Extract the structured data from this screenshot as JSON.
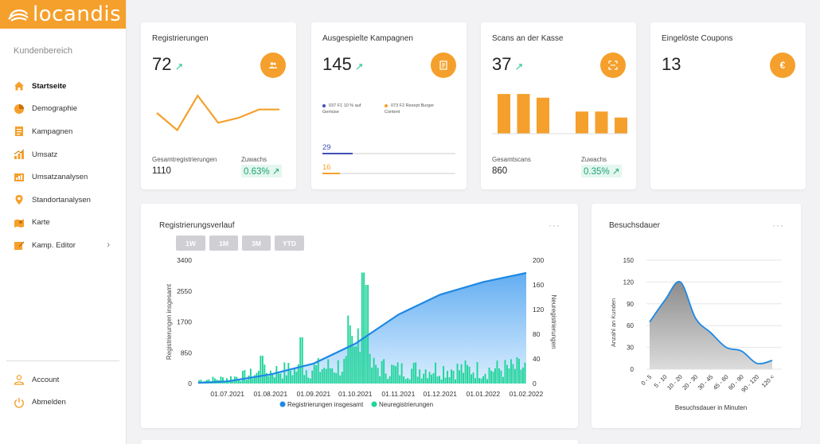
{
  "brand": {
    "name": "locandis",
    "color": "#f5a02c"
  },
  "sidebar": {
    "section_title": "Kundenbereich",
    "items": [
      {
        "label": "Startseite",
        "icon": "home-icon",
        "active": true
      },
      {
        "label": "Demographie",
        "icon": "pie-icon"
      },
      {
        "label": "Kampagnen",
        "icon": "document-icon"
      },
      {
        "label": "Umsatz",
        "icon": "bar-chart-icon"
      },
      {
        "label": "Umsatzanalysen",
        "icon": "analysis-icon"
      },
      {
        "label": "Standortanalysen",
        "icon": "location-pin-icon"
      },
      {
        "label": "Karte",
        "icon": "map-icon"
      },
      {
        "label": "Kamp. Editor",
        "icon": "edit-icon"
      }
    ],
    "bottom": [
      {
        "label": "Account",
        "icon": "user-icon"
      },
      {
        "label": "Abmelden",
        "icon": "power-icon"
      }
    ]
  },
  "cards": {
    "registrierungen": {
      "title": "Registrierungen",
      "value": "72",
      "trend": "↗",
      "total_label": "Gesamtregistrierungen",
      "total_value": "1110",
      "growth_label": "Zuwachs",
      "growth_value": "0.63%",
      "growth_arrow": "↗"
    },
    "kampagnen": {
      "title": "Ausgespielte Kampagnen",
      "value": "145",
      "trend": "↗",
      "legend": [
        {
          "label": "037 F1 10 % auf Gemüse",
          "color": "#3f51b5"
        },
        {
          "label": "073 F2 Rezept Burger Content",
          "color": "#f5a02c"
        }
      ],
      "bars": [
        {
          "value": "29",
          "color": "#3f51b5",
          "fraction": 0.23
        },
        {
          "value": "16",
          "color": "#f5a02c",
          "fraction": 0.13
        }
      ]
    },
    "scans": {
      "title": "Scans an der Kasse",
      "value": "37",
      "trend": "↗",
      "total_label": "Gesamtscans",
      "total_value": "860",
      "growth_label": "Zuwachs",
      "growth_value": "0.35%",
      "growth_arrow": "↗"
    },
    "coupons": {
      "title": "Eingelöste Coupons",
      "value": "13",
      "icon_symbol": "€"
    }
  },
  "sparkline_registrierungen": {
    "values": [
      0.55,
      0.2,
      0.9,
      0.35,
      0.45,
      0.62,
      0.62
    ]
  },
  "sparkbars_scans": {
    "values": [
      0.86,
      0.86,
      0.78,
      0,
      0.48,
      0.48,
      0.35
    ]
  },
  "verlauf": {
    "title": "Registrierungsverlauf",
    "buttons": [
      "1W",
      "1M",
      "3M",
      "YTD"
    ],
    "more": "···",
    "legend": [
      "Registrierungen insgesamt",
      "Neuregistrierungen"
    ]
  },
  "besuch": {
    "title": "Besuchsdauer",
    "more": "···"
  },
  "chart_data": [
    {
      "type": "line",
      "title": "Registrierungsverlauf",
      "ylabel": "Registrierungen insgesamt",
      "y2label": "Neuregistrierungen",
      "ylim": [
        0,
        3400
      ],
      "y2lim": [
        0,
        200
      ],
      "yticks": [
        "0",
        "850",
        "1700",
        "2550",
        "3400"
      ],
      "y2ticks": [
        "0",
        "40",
        "80",
        "120",
        "160",
        "200"
      ],
      "xticks": [
        "01.07.2021",
        "01.08.2021",
        "01.09.2021",
        "01.10.2021",
        "01.11.2021",
        "01.12.2021",
        "01.01.2022",
        "01.02.2022"
      ],
      "series": [
        {
          "name": "Registrierungen insgesamt",
          "color": "#1e88e5",
          "x": [
            "2021-06-10",
            "2021-07-01",
            "2021-08-01",
            "2021-09-01",
            "2021-10-01",
            "2021-11-01",
            "2021-12-01",
            "2022-01-01",
            "2022-02-01"
          ],
          "values": [
            20,
            60,
            250,
            550,
            1100,
            1900,
            2450,
            2800,
            3050
          ]
        },
        {
          "name": "Neuregistrierungen",
          "color": "#1fd49a",
          "x": [
            "2021-06-10",
            "2021-07-01",
            "2021-08-01",
            "2021-09-01",
            "2021-10-01",
            "2021-11-01",
            "2021-12-01",
            "2022-01-01",
            "2022-02-01"
          ],
          "values": [
            5,
            10,
            25,
            40,
            185,
            30,
            45,
            35,
            30
          ]
        }
      ],
      "legend": "bottom"
    },
    {
      "type": "area",
      "title": "Besuchsdauer",
      "xlabel": "Besuchsdauer in Minuten",
      "ylabel": "Anzahl an Kunden",
      "categories": [
        "0 - 5",
        "5 - 10",
        "10 - 20",
        "20 - 30",
        "30 - 45",
        "45 - 60",
        "60 - 90",
        "90 - 120",
        "120 <"
      ],
      "values": [
        65,
        95,
        120,
        70,
        50,
        30,
        25,
        8,
        12
      ],
      "ylim": [
        0,
        150
      ],
      "yticks": [
        "0",
        "30",
        "60",
        "90",
        "120",
        "150"
      ]
    }
  ]
}
